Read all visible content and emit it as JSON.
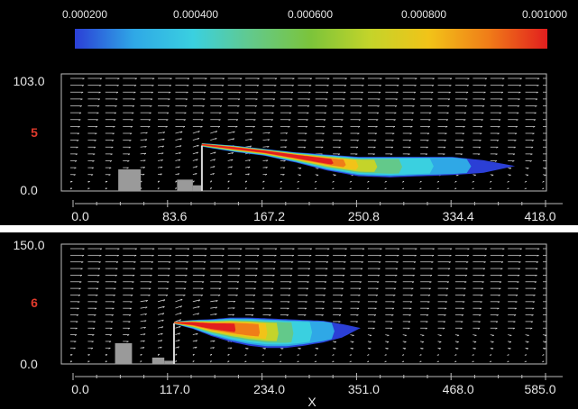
{
  "colorbar": {
    "ticks": [
      "0.000200",
      "0.000400",
      "0.000600",
      "0.000800",
      "0.001000"
    ],
    "stops": [
      "#2b3fd6",
      "#2fa8e6",
      "#3ad0e0",
      "#63c98a",
      "#7cc43a",
      "#c4d42a",
      "#f2c318",
      "#f07d18",
      "#e21e1e"
    ]
  },
  "colors": {
    "panel_bg": "#000000",
    "axis": "#bcbcbc",
    "tick_text": "#e6e6e6",
    "highlight_text": "#e03a2c",
    "building": "#9a9a9a",
    "arrow": "#e8e8e8"
  },
  "chart_data": [
    {
      "type": "vector-field-contour",
      "xlabel": "",
      "ylabel": "",
      "xlim": [
        0,
        418
      ],
      "ylim": [
        0,
        103
      ],
      "x_ticks": [
        "0.0",
        "83.6",
        "167.2",
        "250.8",
        "334.4",
        "418.0"
      ],
      "y_ticks": [
        "0.0",
        "103.0"
      ],
      "y_highlight": {
        "value": 5,
        "label": "5",
        "color": "#e03a2c"
      },
      "buildings": [
        {
          "x0": 40,
          "x1": 60,
          "y0": 0,
          "y1": 19
        },
        {
          "x0": 92,
          "x1": 106,
          "y0": 0,
          "y1": 10
        },
        {
          "x0": 106,
          "x1": 114,
          "y0": 0,
          "y1": 5
        }
      ],
      "stack": {
        "x": 114,
        "y0": 0,
        "y1": 40
      },
      "plume": {
        "x_start": 114,
        "x_end": 391,
        "source_y": 42,
        "top_y": [
          42,
          40,
          37,
          34,
          32,
          30,
          30,
          30,
          30,
          27,
          22
        ],
        "bottom_y": [
          39,
          34.5,
          31,
          25,
          18,
          13,
          12,
          13,
          14,
          16,
          22
        ],
        "core_fraction": 0.42
      }
    },
    {
      "type": "vector-field-contour",
      "xlabel": "X",
      "ylabel": "",
      "xlim": [
        0,
        585
      ],
      "ylim": [
        0,
        150
      ],
      "x_ticks": [
        "0.0",
        "117.0",
        "234.0",
        "351.0",
        "468.0",
        "585.0"
      ],
      "y_ticks": [
        "0.0",
        "150.0"
      ],
      "y_highlight": {
        "value": 6,
        "label": "6",
        "color": "#e03a2c"
      },
      "buildings": [
        {
          "x0": 52,
          "x1": 73,
          "y0": 0,
          "y1": 26
        },
        {
          "x0": 98,
          "x1": 113,
          "y0": 0,
          "y1": 8
        },
        {
          "x0": 113,
          "x1": 125,
          "y0": 0,
          "y1": 4
        }
      ],
      "stack": {
        "x": 125,
        "y0": 0,
        "y1": 51
      },
      "plume": {
        "x_start": 125,
        "x_end": 356,
        "source_y": 52,
        "top_y": [
          53,
          55,
          56,
          58,
          58,
          57,
          56,
          55,
          54,
          50,
          45
        ],
        "bottom_y": [
          50,
          44,
          35,
          28,
          23,
          20,
          20,
          23,
          27,
          33,
          45
        ],
        "core_fraction": 0.33
      }
    }
  ]
}
